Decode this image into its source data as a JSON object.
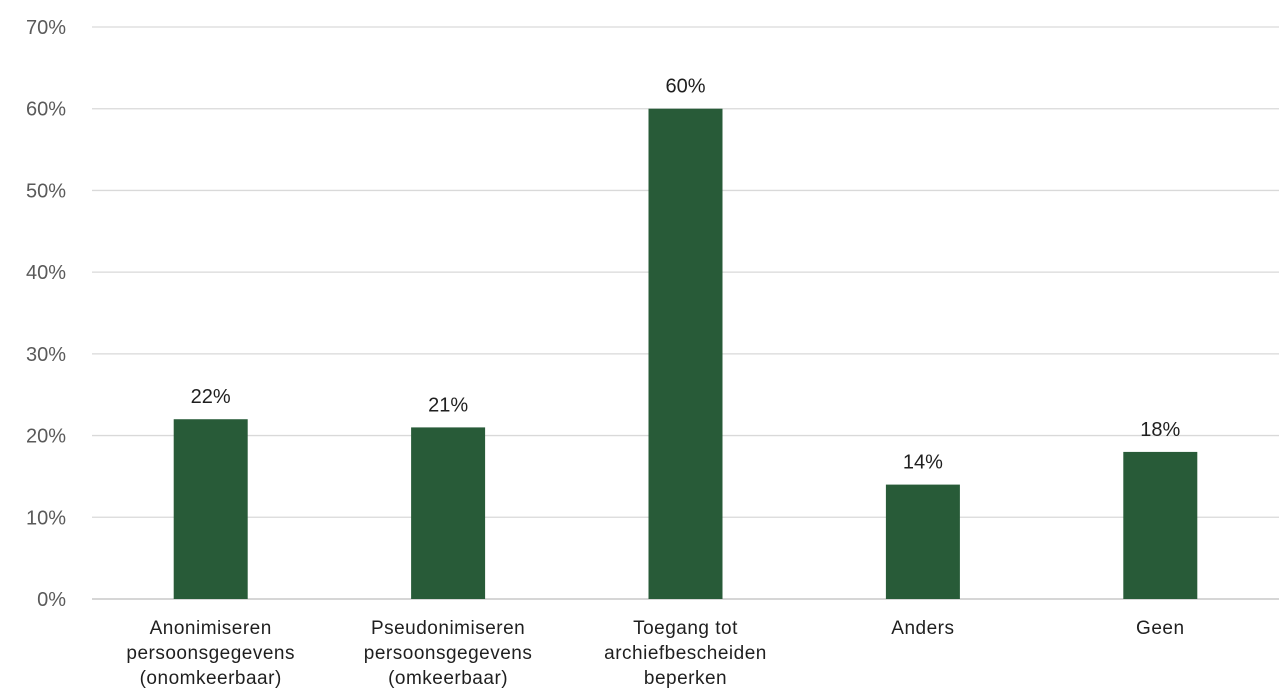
{
  "chart_data": {
    "type": "bar",
    "title": "",
    "xlabel": "",
    "ylabel": "",
    "ylim": [
      0,
      70
    ],
    "y_ticks": [
      0,
      10,
      20,
      30,
      40,
      50,
      60,
      70
    ],
    "y_tick_labels": [
      "0%",
      "10%",
      "20%",
      "30%",
      "40%",
      "50%",
      "60%",
      "70%"
    ],
    "grid": true,
    "categories": [
      [
        "Anonimiseren",
        "persoonsgegevens",
        "(onomkeerbaar)"
      ],
      [
        "Pseudonimiseren",
        "persoonsgegevens",
        "(omkeerbaar)"
      ],
      [
        "Toegang tot",
        "archiefbescheiden",
        "beperken"
      ],
      [
        "Anders"
      ],
      [
        "Geen"
      ]
    ],
    "values": [
      22,
      21,
      60,
      14,
      18
    ],
    "value_labels": [
      "22%",
      "21%",
      "60%",
      "14%",
      "18%"
    ],
    "bar_color": "#285b38"
  }
}
